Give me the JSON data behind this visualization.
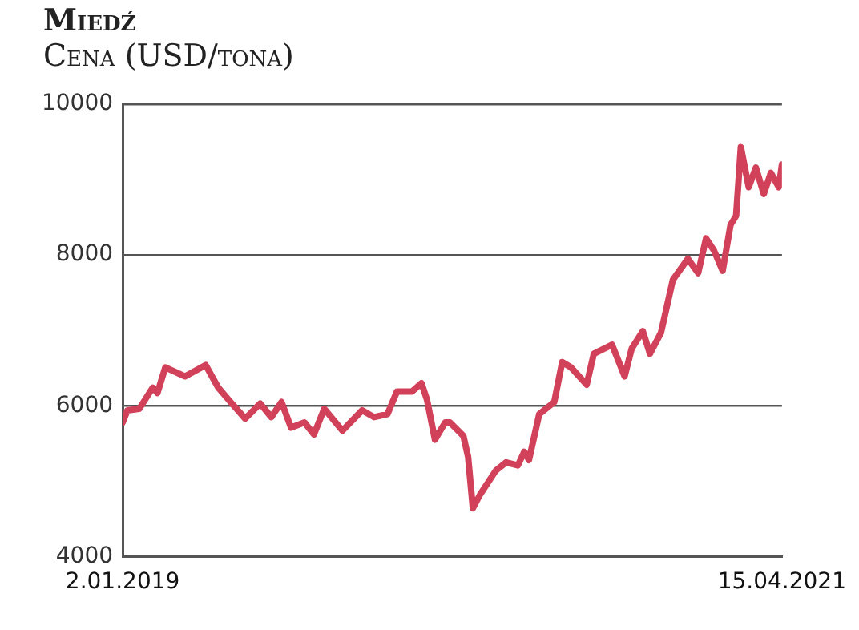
{
  "chart_data": {
    "type": "line",
    "title": "Miedź",
    "subtitle": "Cena (USD/tona)",
    "x": [
      "2019-01-02",
      "2019-01-08",
      "2019-01-23",
      "2019-02-09",
      "2019-02-15",
      "2019-02-25",
      "2019-03-22",
      "2019-04-17",
      "2019-05-03",
      "2019-05-16",
      "2019-06-06",
      "2019-06-25",
      "2019-07-09",
      "2019-07-22",
      "2019-08-03",
      "2019-08-20",
      "2019-09-01",
      "2019-09-14",
      "2019-10-07",
      "2019-11-01",
      "2019-11-16",
      "2019-12-03",
      "2019-12-15",
      "2020-01-03",
      "2020-01-15",
      "2020-01-22",
      "2020-02-01",
      "2020-02-14",
      "2020-02-20",
      "2020-03-08",
      "2020-03-14",
      "2020-03-20",
      "2020-03-29",
      "2020-04-18",
      "2020-05-01",
      "2020-05-16",
      "2020-05-24",
      "2020-05-30",
      "2020-06-12",
      "2020-07-01",
      "2020-07-11",
      "2020-07-22",
      "2020-08-11",
      "2020-08-20",
      "2020-09-12",
      "2020-09-28",
      "2020-10-07",
      "2020-10-21",
      "2020-10-30",
      "2020-11-13",
      "2020-11-28",
      "2020-12-17",
      "2020-12-30",
      "2021-01-09",
      "2021-01-19",
      "2021-01-30",
      "2021-02-09",
      "2021-02-16",
      "2021-02-22",
      "2021-03-04",
      "2021-03-13",
      "2021-03-23",
      "2021-04-01",
      "2021-04-11",
      "2021-04-15"
    ],
    "series": [
      {
        "color": "#d2415a",
        "values": [
          5780,
          5940,
          5960,
          6240,
          6170,
          6510,
          6390,
          6540,
          6240,
          6080,
          5830,
          6030,
          5850,
          6050,
          5710,
          5780,
          5620,
          5960,
          5670,
          5940,
          5850,
          5890,
          6190,
          6190,
          6300,
          6080,
          5550,
          5780,
          5780,
          5600,
          5320,
          4640,
          4820,
          5140,
          5250,
          5210,
          5390,
          5280,
          5890,
          6050,
          6580,
          6510,
          6280,
          6690,
          6810,
          6390,
          6760,
          6990,
          6690,
          6970,
          7670,
          7950,
          7760,
          8220,
          8060,
          7790,
          8400,
          8520,
          9430,
          8900,
          9160,
          8810,
          9090,
          8900,
          9200
        ]
      }
    ],
    "xlim": [
      "2019-01-02",
      "2021-04-15"
    ],
    "xticks": [
      {
        "value": "2019-01-02",
        "label": "2.01.2019"
      },
      {
        "value": "2021-04-15",
        "label": "15.04.2021"
      }
    ],
    "ylim": [
      4000,
      10000
    ],
    "yticks": [
      4000,
      6000,
      8000,
      10000
    ],
    "grid": "y",
    "legend": false,
    "marker": "none",
    "line_style": "solid"
  }
}
